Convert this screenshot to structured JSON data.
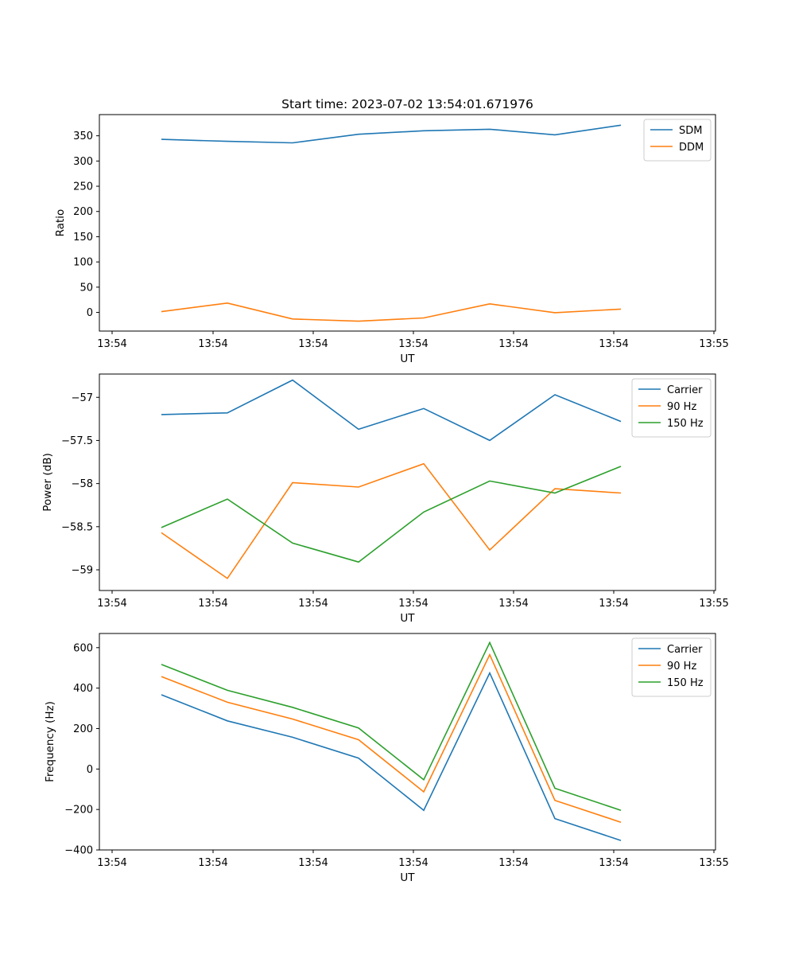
{
  "figure": {
    "title": "Start time: 2023-07-02 13:54:01.671976"
  },
  "chart_data": [
    {
      "type": "line",
      "xlabel": "UT",
      "ylabel": "Ratio",
      "x_ticks": [
        "13:54",
        "13:54",
        "13:54",
        "13:54",
        "13:54",
        "13:54",
        "13:54"
      ],
      "x_tick_last": "13:55",
      "y_ticks": [
        0,
        50,
        100,
        150,
        200,
        250,
        300,
        350
      ],
      "ylim": [
        -37,
        392
      ],
      "legend_position": "top-right",
      "series": [
        {
          "name": "SDM",
          "color": "#1f77b4",
          "values": [
            343,
            339,
            336,
            353,
            360,
            363,
            352,
            371
          ]
        },
        {
          "name": "DDM",
          "color": "#ff7f0e",
          "values": [
            1.5,
            18.5,
            -13,
            -17.5,
            -11,
            17,
            -0.5,
            6.5
          ]
        }
      ]
    },
    {
      "type": "line",
      "xlabel": "UT",
      "ylabel": "Power (dB)",
      "x_ticks": [
        "13:54",
        "13:54",
        "13:54",
        "13:54",
        "13:54",
        "13:54",
        "13:54"
      ],
      "x_tick_last": "13:55",
      "y_ticks": [
        -57.0,
        -57.5,
        -58.0,
        -58.5,
        -59.0
      ],
      "ylim": [
        -59.24,
        -56.73
      ],
      "legend_position": "top-right",
      "series": [
        {
          "name": "Carrier",
          "color": "#1f77b4",
          "values": [
            -57.2,
            -57.18,
            -56.8,
            -57.37,
            -57.13,
            -57.5,
            -56.97,
            -57.28
          ]
        },
        {
          "name": "90 Hz",
          "color": "#ff7f0e",
          "values": [
            -58.57,
            -59.1,
            -57.99,
            -58.04,
            -57.77,
            -58.77,
            -58.06,
            -58.11
          ]
        },
        {
          "name": "150 Hz",
          "color": "#2ca02c",
          "values": [
            -58.51,
            -58.18,
            -58.69,
            -58.91,
            -58.33,
            -57.97,
            -58.11,
            -57.8
          ]
        }
      ]
    },
    {
      "type": "line",
      "xlabel": "UT",
      "ylabel": "Frequency (Hz)",
      "x_ticks": [
        "13:54",
        "13:54",
        "13:54",
        "13:54",
        "13:54",
        "13:54",
        "13:54"
      ],
      "x_tick_last": "13:55",
      "y_ticks": [
        -400,
        -200,
        0,
        200,
        400,
        600
      ],
      "ylim": [
        -400,
        670
      ],
      "legend_position": "top-right",
      "series": [
        {
          "name": "Carrier",
          "color": "#1f77b4",
          "values": [
            367,
            238,
            157,
            54,
            -204,
            475,
            -245,
            -353
          ]
        },
        {
          "name": "90 Hz",
          "color": "#ff7f0e",
          "values": [
            457,
            330,
            247,
            145,
            -113,
            565,
            -155,
            -263
          ]
        },
        {
          "name": "150 Hz",
          "color": "#2ca02c",
          "values": [
            517,
            389,
            305,
            203,
            -53,
            625,
            -95,
            -204
          ]
        }
      ]
    }
  ]
}
